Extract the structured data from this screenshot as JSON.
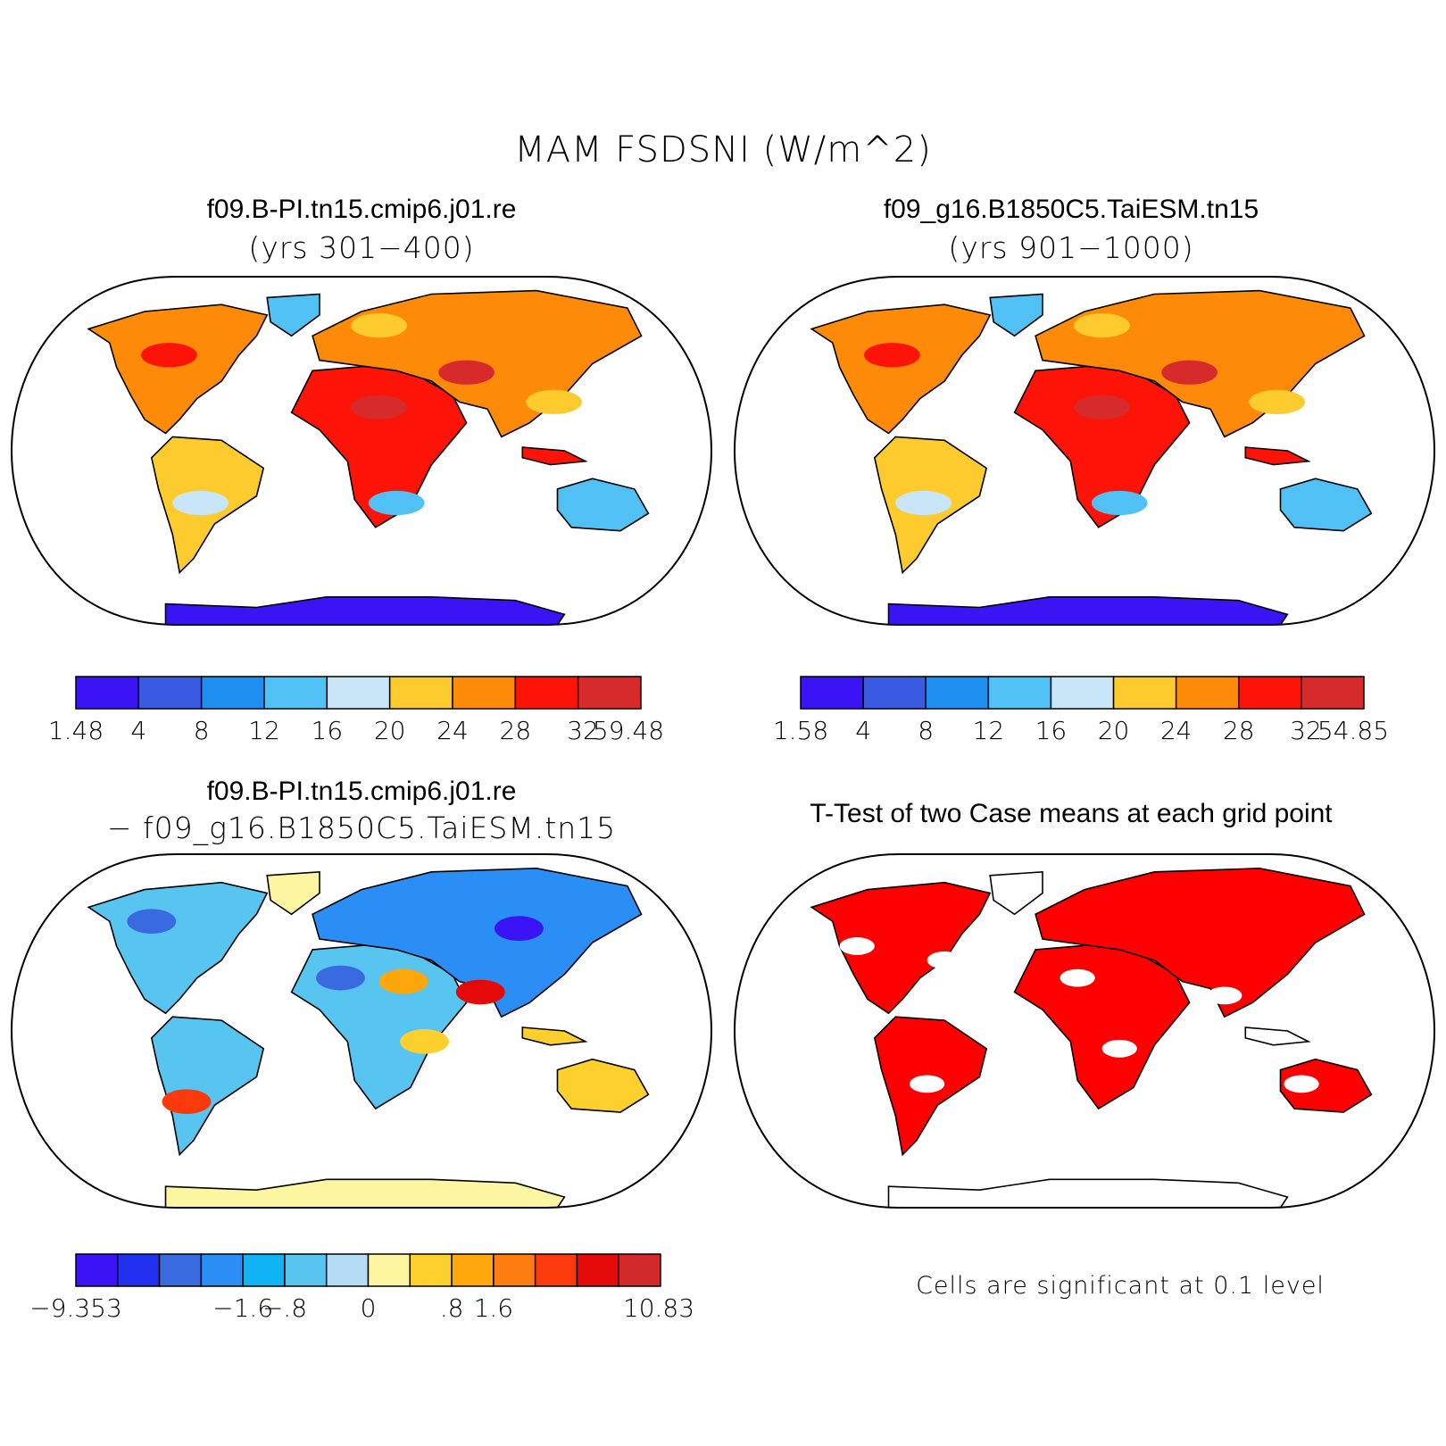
{
  "figure": {
    "title": "MAM FSDSNI (W/m^2)"
  },
  "panels": {
    "case1": {
      "title": "f09.B-PI.tn15.cmip6.j01.re",
      "subtitle": "(yrs 301−400)",
      "colorbar": {
        "labels": [
          "1.48",
          "4",
          "8",
          "12",
          "16",
          "20",
          "24",
          "28",
          "32",
          "59.48"
        ],
        "colors": [
          "#3b14f5",
          "#3a5ae0",
          "#1e8ff0",
          "#50c0f5",
          "#c8e6f7",
          "#fdcb2e",
          "#fd8a08",
          "#fb1407",
          "#d72a2a"
        ]
      }
    },
    "case2": {
      "title": "f09_g16.B1850C5.TaiESM.tn15",
      "subtitle": "(yrs 901−1000)",
      "colorbar": {
        "labels": [
          "1.58",
          "4",
          "8",
          "12",
          "16",
          "20",
          "24",
          "28",
          "32",
          "54.85"
        ],
        "colors": [
          "#3b14f5",
          "#3a5ae0",
          "#1e8ff0",
          "#50c0f5",
          "#c8e6f7",
          "#fdcb2e",
          "#fd8a08",
          "#fb1407",
          "#d72a2a"
        ]
      }
    },
    "diff": {
      "title": "f09.B-PI.tn15.cmip6.j01.re",
      "subtitle": "− f09_g16.B1850C5.TaiESM.tn15",
      "colorbar": {
        "labels": [
          "−9.353",
          "−1.6",
          "−.8",
          "0",
          ".8",
          "1.6",
          "10.83"
        ],
        "colors": [
          "#3a14f5",
          "#2230f0",
          "#3a6ae0",
          "#2a8ef5",
          "#10b4f5",
          "#58c4f0",
          "#b4dcf4",
          "#fdf6a0",
          "#fdd02e",
          "#fda70a",
          "#fd7e10",
          "#fb3a0c",
          "#e50a0a",
          "#d22a2a"
        ]
      }
    },
    "ttest": {
      "title": "T-Test of two Case means at each grid point",
      "note": "Cells are significant at 0.1 level",
      "color": "#ff0000"
    }
  }
}
